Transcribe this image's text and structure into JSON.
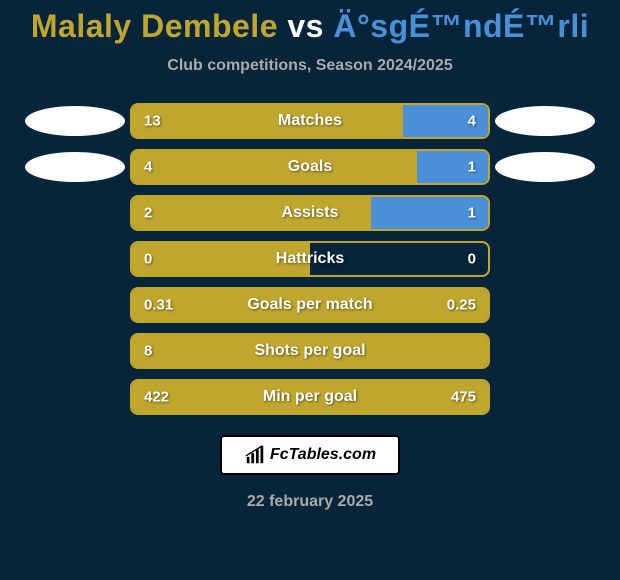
{
  "background_color": "#07253a",
  "title": {
    "player1": "Malaly Dembele",
    "vs": "vs",
    "player2": "Ä°sgÉ™ndÉ™rli",
    "player1_color": "#bfa72f",
    "player2_color": "#4a90d9"
  },
  "subtitle": "Club competitions, Season 2024/2025",
  "bar_colors": {
    "left": "#bfa72f",
    "right": "#4a90d9",
    "border": "#bfa72f"
  },
  "text_color_muted": "#aaaaaa",
  "stats": [
    {
      "label": "Matches",
      "left_val": "13",
      "right_val": "4",
      "left_pct": 76,
      "right_pct": 24,
      "show_logos": true
    },
    {
      "label": "Goals",
      "left_val": "4",
      "right_val": "1",
      "left_pct": 80,
      "right_pct": 20,
      "show_logos": true
    },
    {
      "label": "Assists",
      "left_val": "2",
      "right_val": "1",
      "left_pct": 67,
      "right_pct": 33,
      "show_logos": false
    },
    {
      "label": "Hattricks",
      "left_val": "0",
      "right_val": "0",
      "left_pct": 50,
      "right_pct": 0,
      "show_logos": false
    },
    {
      "label": "Goals per match",
      "left_val": "0.31",
      "right_val": "0.25",
      "left_pct": 100,
      "right_pct": 0,
      "show_logos": false
    },
    {
      "label": "Shots per goal",
      "left_val": "8",
      "right_val": "",
      "left_pct": 100,
      "right_pct": 0,
      "show_logos": false
    },
    {
      "label": "Min per goal",
      "left_val": "422",
      "right_val": "475",
      "left_pct": 100,
      "right_pct": 0,
      "show_logos": false
    }
  ],
  "badge_text": "FcTables.com",
  "date": "22 february 2025"
}
